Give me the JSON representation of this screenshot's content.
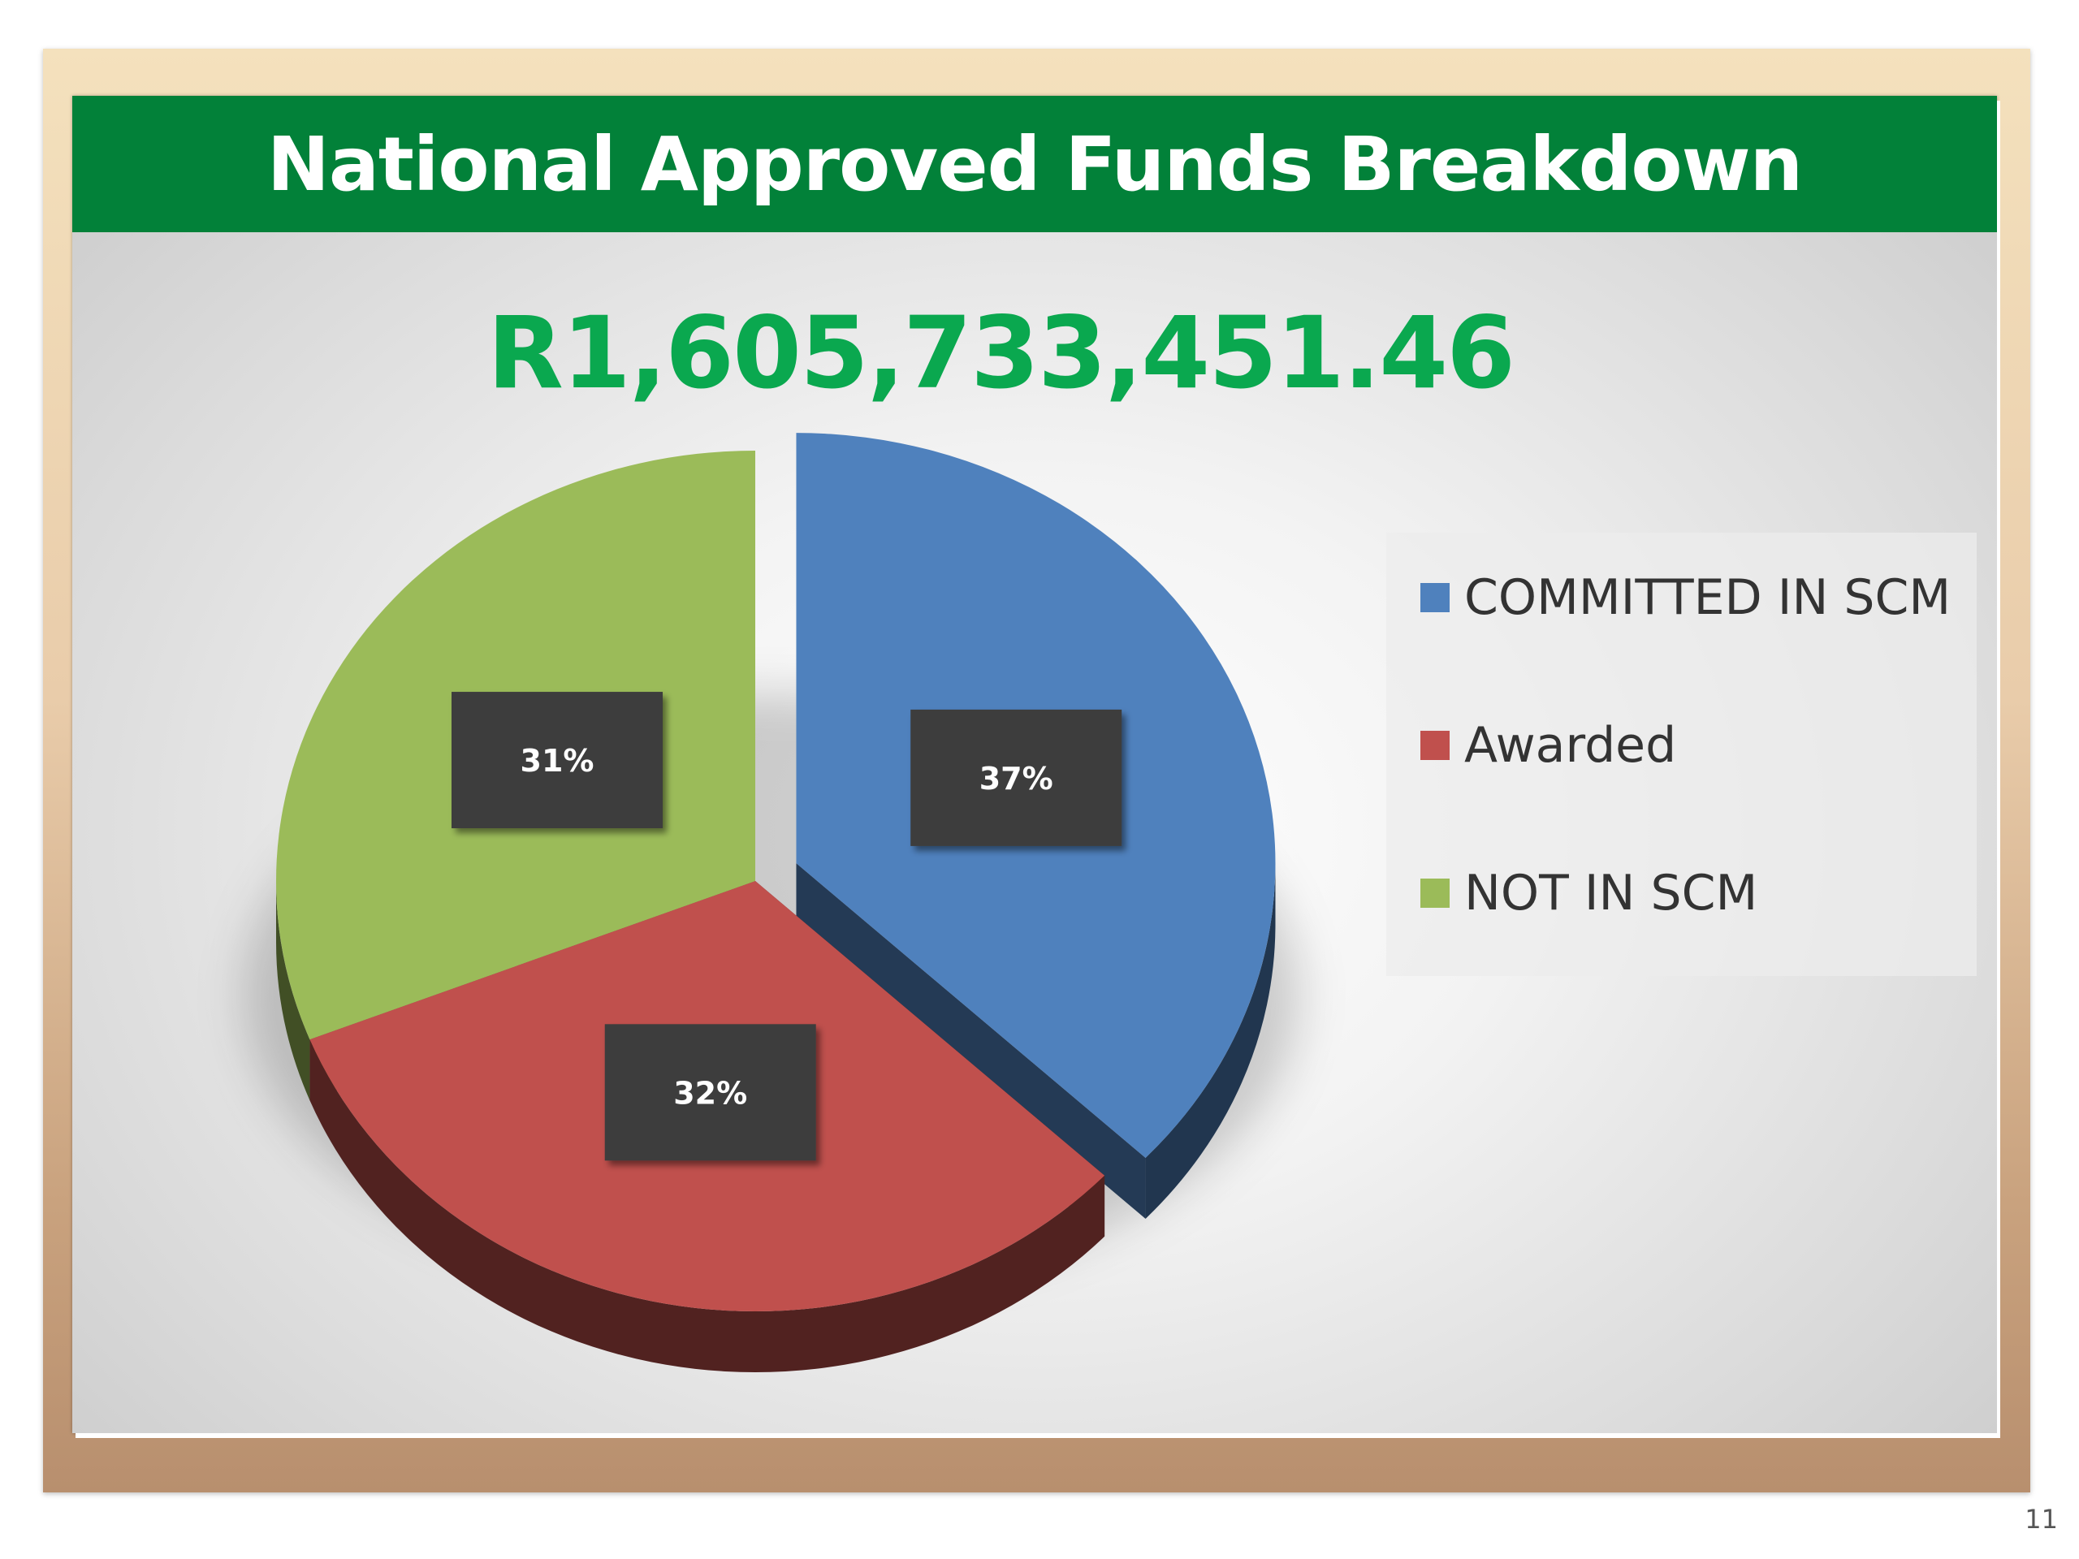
{
  "slide": {
    "title": "National Approved Funds Breakdown",
    "total": "R1,605,733,451.46",
    "page_number": "11"
  },
  "chart_data": {
    "type": "pie",
    "title": "",
    "categories": [
      "COMMITTED IN SCM",
      "Awarded",
      "NOT IN SCM"
    ],
    "values": [
      37,
      32,
      31
    ],
    "labels": [
      "37%",
      "32%",
      "31%"
    ],
    "colors": [
      "#4f81bd",
      "#c0504d",
      "#9bbb59"
    ],
    "legend": {
      "position": "right",
      "items": [
        "COMMITTED IN SCM",
        "Awarded",
        "NOT IN SCM"
      ]
    }
  }
}
